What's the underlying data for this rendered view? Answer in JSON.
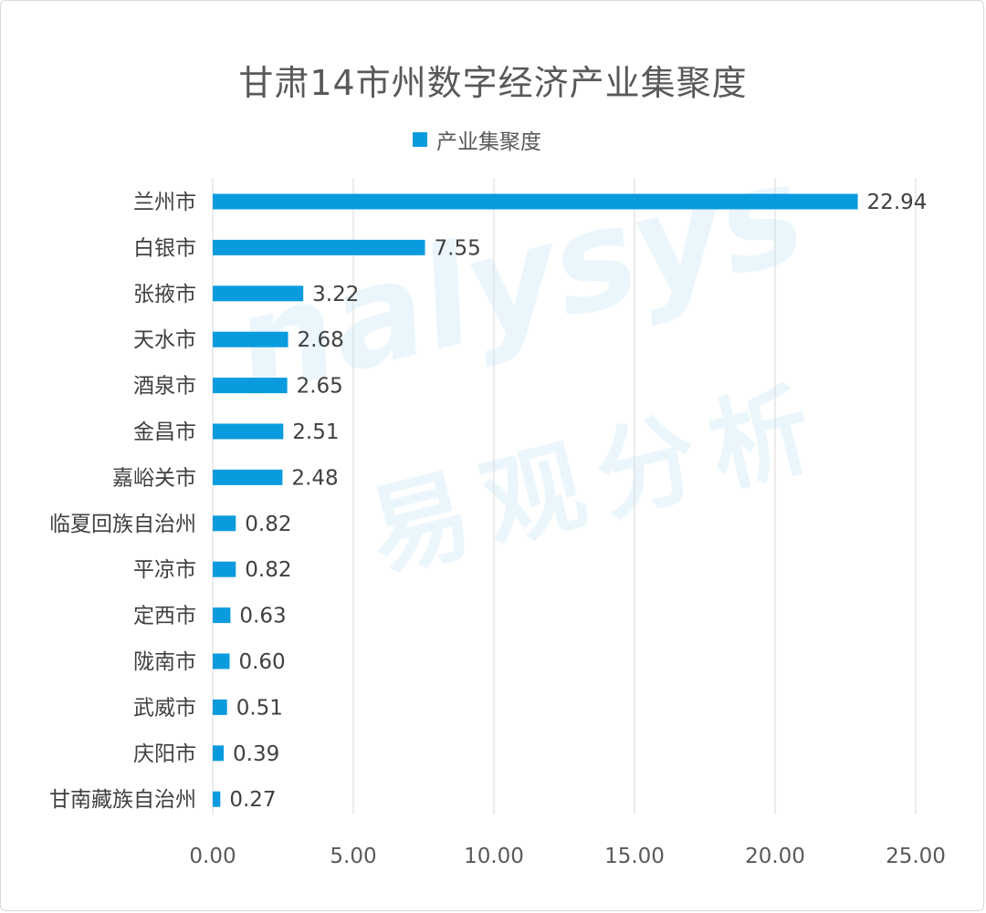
{
  "watermark": {
    "text_en": "nalysys",
    "text_cn": "易观分析"
  },
  "chart_data": {
    "type": "bar",
    "orientation": "horizontal",
    "title": "甘肃14市州数字经济产业集聚度",
    "legend": {
      "position": "top",
      "label": "产业集聚度"
    },
    "bar_color": "#0A9BDF",
    "categories": [
      "兰州市",
      "白银市",
      "张掖市",
      "天水市",
      "酒泉市",
      "金昌市",
      "嘉峪关市",
      "临夏回族自治州",
      "平凉市",
      "定西市",
      "陇南市",
      "武威市",
      "庆阳市",
      "甘南藏族自治州"
    ],
    "series": [
      {
        "name": "产业集聚度",
        "values": [
          22.94,
          7.55,
          3.22,
          2.68,
          2.65,
          2.51,
          2.48,
          0.82,
          0.82,
          0.63,
          0.6,
          0.51,
          0.39,
          0.27
        ],
        "labels": [
          "22.94",
          "7.55",
          "3.22",
          "2.68",
          "2.65",
          "2.51",
          "2.48",
          "0.82",
          "0.82",
          "0.63",
          "0.60",
          "0.51",
          "0.39",
          "0.27"
        ]
      }
    ],
    "xlim": [
      0,
      25
    ],
    "xticks": [
      0,
      5,
      10,
      15,
      20,
      25
    ],
    "xtick_labels": [
      "0.00",
      "5.00",
      "10.00",
      "15.00",
      "20.00",
      "25.00"
    ],
    "grid": "vertical"
  }
}
